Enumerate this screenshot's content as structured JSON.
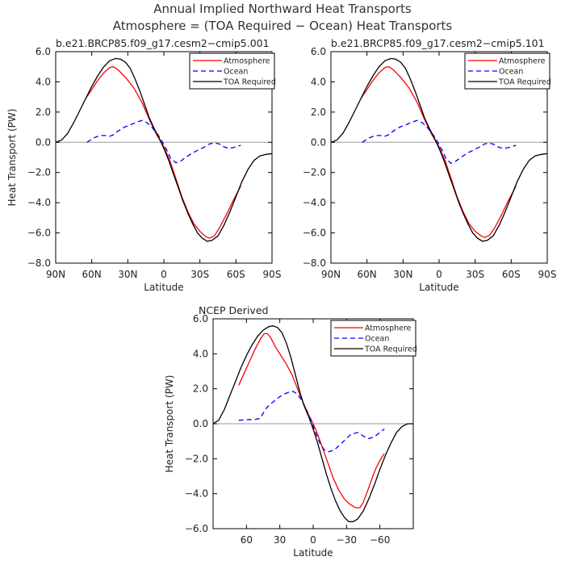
{
  "figure": {
    "title_line1": "Annual Implied Northward Heat Transports",
    "title_line2": "Atmosphere = (TOA Required − Ocean) Heat Transports"
  },
  "series_colors": {
    "Atmosphere": "#ff0000",
    "Ocean": "#0000ff",
    "TOA Required": "#000000"
  },
  "chart_data": [
    {
      "type": "line",
      "title": "b.e21.BRCP85.f09_g17.cesm2−cmip5.001",
      "xlabel": "Latitude",
      "ylabel": "Heat Transport (PW)",
      "xlim": [
        90,
        -90
      ],
      "ylim": [
        -8,
        6
      ],
      "xticks": [
        90,
        60,
        30,
        0,
        -30,
        -60,
        -90
      ],
      "xtick_labels": [
        "90N",
        "60N",
        "30N",
        "0",
        "30S",
        "60S",
        "90S"
      ],
      "yticks": [
        6,
        4,
        2,
        0,
        -2,
        -4,
        -6,
        -8
      ],
      "ytick_labels": [
        "6.0",
        "4.0",
        "2.0",
        "0.0",
        "−2.0",
        "−4.0",
        "−6.0",
        "−8.0"
      ],
      "legend": "top-right",
      "series": [
        {
          "name": "Atmosphere",
          "style": "solid",
          "x": [
            65,
            60,
            55,
            50,
            45,
            42,
            38,
            32,
            25,
            18,
            12,
            6,
            0,
            -5,
            -10,
            -15,
            -20,
            -25,
            -30,
            -35,
            -38,
            -42,
            -46,
            -52,
            -58,
            -64
          ],
          "y": [
            2.9,
            3.5,
            4.1,
            4.6,
            4.95,
            5.0,
            4.8,
            4.3,
            3.6,
            2.6,
            1.5,
            0.5,
            -0.3,
            -1.2,
            -2.4,
            -3.6,
            -4.6,
            -5.4,
            -5.9,
            -6.25,
            -6.35,
            -6.2,
            -5.7,
            -4.8,
            -3.8,
            -2.9
          ]
        },
        {
          "name": "Ocean",
          "style": "dashed",
          "x": [
            64,
            58,
            53,
            48,
            45,
            42,
            38,
            33,
            28,
            22,
            18,
            14,
            10,
            5,
            1,
            -3,
            -6,
            -10,
            -14,
            -19,
            -24,
            -29,
            -34,
            -38,
            -42,
            -46,
            -50,
            -54,
            -58,
            -64
          ],
          "y": [
            0.0,
            0.3,
            0.45,
            0.45,
            0.4,
            0.5,
            0.75,
            1.0,
            1.15,
            1.35,
            1.45,
            1.3,
            1.0,
            0.5,
            0.0,
            -0.6,
            -1.1,
            -1.35,
            -1.25,
            -0.95,
            -0.7,
            -0.5,
            -0.3,
            -0.1,
            -0.05,
            -0.1,
            -0.3,
            -0.4,
            -0.35,
            -0.2
          ]
        },
        {
          "name": "TOA Required",
          "style": "solid",
          "x": [
            90,
            85,
            80,
            75,
            70,
            65,
            60,
            55,
            50,
            45,
            40,
            36,
            32,
            28,
            24,
            20,
            16,
            12,
            8,
            4,
            0,
            -4,
            -8,
            -12,
            -16,
            -20,
            -24,
            -28,
            -32,
            -36,
            -40,
            -45,
            -50,
            -55,
            -60,
            -65,
            -70,
            -75,
            -80,
            -85,
            -90
          ],
          "y": [
            0.0,
            0.15,
            0.6,
            1.3,
            2.1,
            2.9,
            3.7,
            4.4,
            5.0,
            5.4,
            5.55,
            5.5,
            5.3,
            4.9,
            4.2,
            3.4,
            2.5,
            1.6,
            0.9,
            0.3,
            -0.4,
            -1.2,
            -2.1,
            -3.0,
            -3.9,
            -4.7,
            -5.4,
            -6.0,
            -6.35,
            -6.55,
            -6.5,
            -6.2,
            -5.5,
            -4.6,
            -3.6,
            -2.6,
            -1.8,
            -1.2,
            -0.9,
            -0.8,
            -0.75
          ]
        }
      ]
    },
    {
      "type": "line",
      "title": "b.e21.BRCP85.f09_g17.cesm2−cmip5.101",
      "xlabel": "Latitude",
      "ylabel": "",
      "xlim": [
        90,
        -90
      ],
      "ylim": [
        -8,
        6
      ],
      "xticks": [
        90,
        60,
        30,
        0,
        -30,
        -60,
        -90
      ],
      "xtick_labels": [
        "90N",
        "60N",
        "30N",
        "0",
        "30S",
        "60S",
        "90S"
      ],
      "yticks": [
        6,
        4,
        2,
        0,
        -2,
        -4,
        -6,
        -8
      ],
      "ytick_labels": [
        "6.0",
        "4.0",
        "2.0",
        "0.0",
        "−2.0",
        "−4.0",
        "−6.0",
        "−8.0"
      ],
      "legend": "top-right",
      "series": [
        {
          "name": "Atmosphere",
          "style": "solid",
          "x": [
            65,
            60,
            55,
            50,
            45,
            42,
            38,
            32,
            25,
            18,
            12,
            6,
            0,
            -5,
            -10,
            -15,
            -20,
            -25,
            -30,
            -35,
            -38,
            -42,
            -46,
            -52,
            -58,
            -64
          ],
          "y": [
            2.9,
            3.5,
            4.1,
            4.6,
            4.95,
            5.0,
            4.8,
            4.3,
            3.6,
            2.6,
            1.5,
            0.5,
            -0.3,
            -1.2,
            -2.4,
            -3.6,
            -4.6,
            -5.4,
            -5.9,
            -6.2,
            -6.3,
            -6.15,
            -5.7,
            -4.8,
            -3.8,
            -2.9
          ]
        },
        {
          "name": "Ocean",
          "style": "dashed",
          "x": [
            64,
            58,
            53,
            48,
            45,
            42,
            38,
            33,
            28,
            22,
            18,
            14,
            10,
            5,
            1,
            -3,
            -6,
            -10,
            -14,
            -19,
            -24,
            -29,
            -34,
            -38,
            -42,
            -46,
            -50,
            -54,
            -58,
            -64
          ],
          "y": [
            0.0,
            0.3,
            0.45,
            0.45,
            0.4,
            0.5,
            0.75,
            1.0,
            1.15,
            1.35,
            1.45,
            1.3,
            1.0,
            0.5,
            0.0,
            -0.6,
            -1.1,
            -1.4,
            -1.25,
            -0.95,
            -0.7,
            -0.5,
            -0.3,
            -0.1,
            -0.05,
            -0.15,
            -0.35,
            -0.4,
            -0.35,
            -0.2
          ]
        },
        {
          "name": "TOA Required",
          "style": "solid",
          "x": [
            90,
            85,
            80,
            75,
            70,
            65,
            60,
            55,
            50,
            45,
            40,
            36,
            32,
            28,
            24,
            20,
            16,
            12,
            8,
            4,
            0,
            -4,
            -8,
            -12,
            -16,
            -20,
            -24,
            -28,
            -32,
            -36,
            -40,
            -45,
            -50,
            -55,
            -60,
            -65,
            -70,
            -75,
            -80,
            -85,
            -90
          ],
          "y": [
            0.0,
            0.15,
            0.6,
            1.3,
            2.1,
            2.9,
            3.7,
            4.4,
            5.0,
            5.4,
            5.55,
            5.5,
            5.3,
            4.9,
            4.2,
            3.4,
            2.5,
            1.6,
            0.9,
            0.3,
            -0.4,
            -1.2,
            -2.1,
            -3.0,
            -3.9,
            -4.7,
            -5.4,
            -6.0,
            -6.35,
            -6.55,
            -6.5,
            -6.2,
            -5.5,
            -4.6,
            -3.6,
            -2.6,
            -1.8,
            -1.2,
            -0.9,
            -0.8,
            -0.75
          ]
        }
      ]
    },
    {
      "type": "line",
      "title": "NCEP Derived",
      "xlabel": "Latitude",
      "ylabel": "Heat Transport (PW)",
      "xlim": [
        90,
        -90
      ],
      "ylim": [
        -6,
        6
      ],
      "xticks": [
        60,
        30,
        0,
        -30,
        -60
      ],
      "xtick_labels": [
        "60",
        "30",
        "0",
        "−30",
        "−60"
      ],
      "yticks": [
        6,
        4,
        2,
        0,
        -2,
        -4,
        -6
      ],
      "ytick_labels": [
        "6.0",
        "4.0",
        "2.0",
        "0.0",
        "−2.0",
        "−4.0",
        "−6.0"
      ],
      "legend": "top-right",
      "series": [
        {
          "name": "Atmosphere",
          "style": "solid",
          "x": [
            67,
            62,
            57,
            52,
            47,
            44,
            41,
            38,
            34,
            29,
            24,
            19,
            14,
            9,
            4,
            0,
            -4,
            -8,
            -13,
            -18,
            -23,
            -28,
            -33,
            -38,
            -42,
            -45,
            -48,
            -52,
            -56,
            -60,
            -64
          ],
          "y": [
            2.2,
            2.9,
            3.6,
            4.3,
            4.9,
            5.15,
            5.15,
            4.9,
            4.4,
            3.9,
            3.4,
            2.8,
            2.0,
            1.2,
            0.5,
            0.0,
            -0.6,
            -1.3,
            -2.2,
            -3.1,
            -3.8,
            -4.3,
            -4.6,
            -4.8,
            -4.8,
            -4.5,
            -4.0,
            -3.3,
            -2.6,
            -2.1,
            -1.7
          ]
        },
        {
          "name": "Ocean",
          "style": "dashed",
          "x": [
            67,
            62,
            57,
            52,
            48,
            45,
            42,
            38,
            34,
            30,
            26,
            22,
            18,
            14,
            10,
            6,
            2,
            -2,
            -6,
            -10,
            -14,
            -19,
            -24,
            -29,
            -34,
            -40,
            -45,
            -50,
            -55,
            -60,
            -64
          ],
          "y": [
            0.2,
            0.22,
            0.24,
            0.25,
            0.3,
            0.6,
            0.9,
            1.15,
            1.35,
            1.55,
            1.7,
            1.8,
            1.85,
            1.7,
            1.3,
            0.8,
            0.2,
            -0.5,
            -1.1,
            -1.5,
            -1.6,
            -1.5,
            -1.2,
            -0.9,
            -0.6,
            -0.5,
            -0.7,
            -0.85,
            -0.75,
            -0.5,
            -0.3
          ]
        },
        {
          "name": "TOA Required",
          "style": "solid",
          "x": [
            90,
            85,
            80,
            75,
            70,
            65,
            60,
            55,
            50,
            45,
            40,
            36,
            32,
            28,
            24,
            20,
            16,
            12,
            8,
            4,
            0,
            -4,
            -8,
            -12,
            -16,
            -20,
            -24,
            -28,
            -32,
            -36,
            -40,
            -45,
            -50,
            -55,
            -60,
            -65,
            -70,
            -75,
            -80,
            -85,
            -90
          ],
          "y": [
            0.0,
            0.2,
            0.8,
            1.6,
            2.4,
            3.2,
            3.9,
            4.5,
            5.0,
            5.35,
            5.55,
            5.6,
            5.5,
            5.2,
            4.6,
            3.8,
            2.8,
            1.8,
            1.0,
            0.4,
            -0.3,
            -1.1,
            -2.0,
            -2.9,
            -3.7,
            -4.4,
            -4.95,
            -5.35,
            -5.6,
            -5.6,
            -5.45,
            -5.0,
            -4.3,
            -3.5,
            -2.6,
            -1.8,
            -1.1,
            -0.5,
            -0.15,
            0.0,
            0.0
          ]
        }
      ]
    }
  ]
}
